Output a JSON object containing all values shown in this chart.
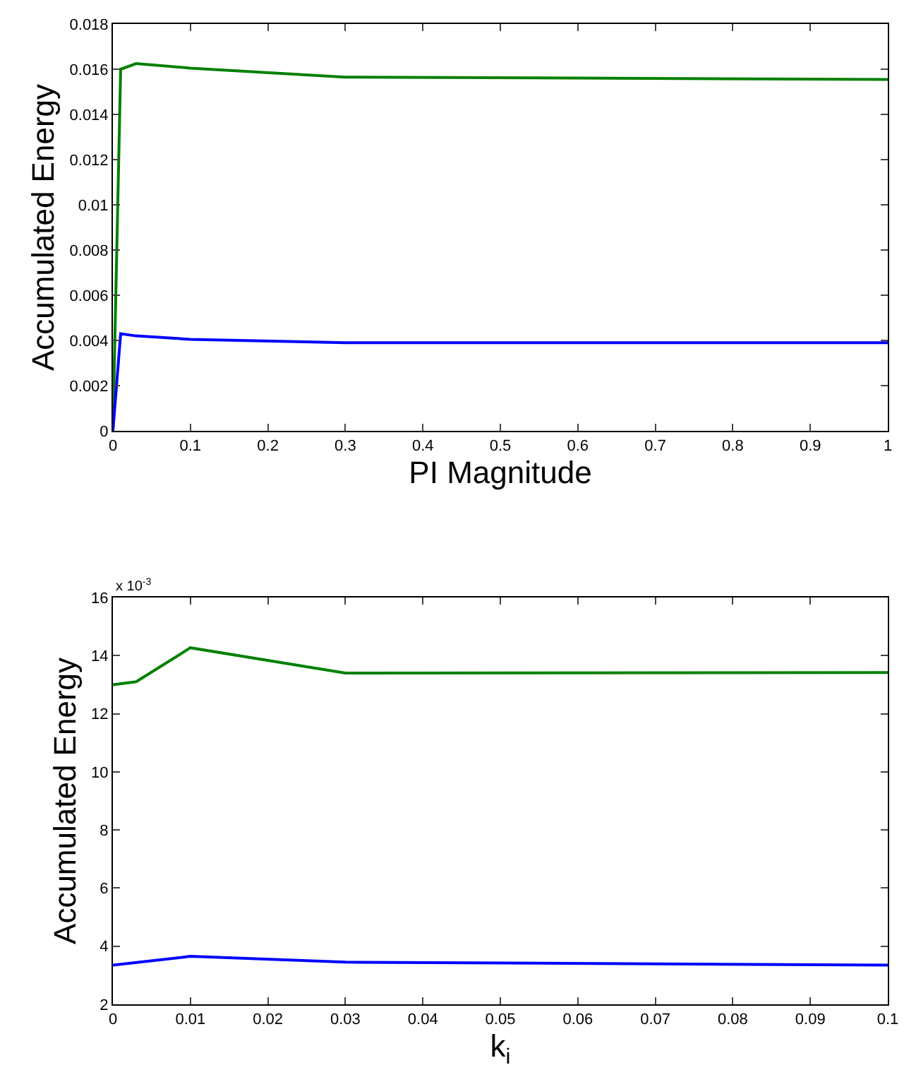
{
  "chart_data": [
    {
      "type": "line",
      "xlabel": "PI Magnitude",
      "ylabel": "Accumulated Energy",
      "xlim": [
        0,
        1
      ],
      "ylim": [
        0,
        0.018
      ],
      "xticks": [
        0,
        0.1,
        0.2,
        0.3,
        0.4,
        0.5,
        0.6,
        0.7,
        0.8,
        0.9,
        1
      ],
      "yticks": [
        0,
        0.002,
        0.004,
        0.006,
        0.008,
        0.01,
        0.012,
        0.014,
        0.016,
        0.018
      ],
      "marker": "none",
      "line_style": "solid",
      "series": [
        {
          "color": "#008000",
          "x": [
            0,
            0.01,
            0.03,
            0.1,
            0.3,
            1
          ],
          "values": [
            0,
            0.016,
            0.01625,
            0.01605,
            0.01565,
            0.01555
          ]
        },
        {
          "color": "#0000ff",
          "x": [
            0,
            0.01,
            0.03,
            0.1,
            0.3,
            1
          ],
          "values": [
            0,
            0.0043,
            0.0042,
            0.00405,
            0.0039,
            0.0039
          ]
        }
      ]
    },
    {
      "type": "line",
      "xlabel": "k$_{i}$",
      "ylabel": "Accumulated Energy",
      "annotations": [
        "x 10$^{-3}$"
      ],
      "xlim": [
        0,
        0.1
      ],
      "ylim": [
        2,
        16
      ],
      "xticks": [
        0,
        0.01,
        0.02,
        0.03,
        0.04,
        0.05,
        0.06,
        0.07,
        0.08,
        0.09,
        0.1
      ],
      "yticks": [
        2,
        4,
        6,
        8,
        10,
        12,
        14,
        16
      ],
      "marker": "none",
      "line_style": "solid",
      "series": [
        {
          "color": "#008000",
          "x": [
            0,
            0.003,
            0.01,
            0.03,
            0.1
          ],
          "values": [
            13.0,
            13.1,
            14.27,
            13.4,
            13.42
          ]
        },
        {
          "color": "#0000ff",
          "x": [
            0,
            0.01,
            0.03,
            0.1
          ],
          "values": [
            3.35,
            3.65,
            3.45,
            3.35
          ]
        }
      ]
    }
  ]
}
